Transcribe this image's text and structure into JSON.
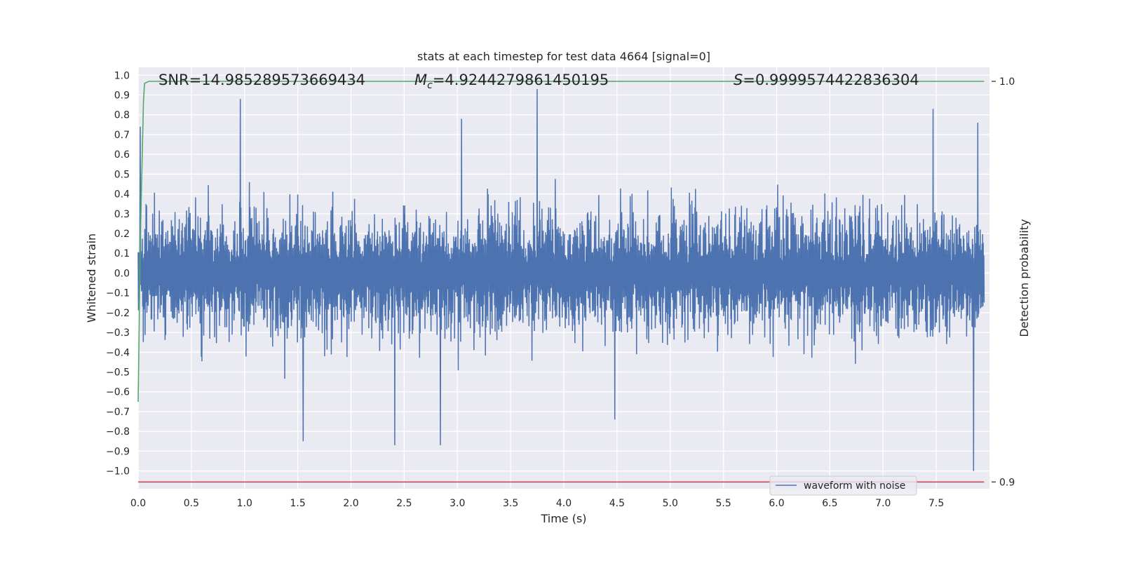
{
  "chart_data": {
    "type": "line",
    "title": "stats at each timestep for test data 4664 [signal=0]",
    "xlabel": "Time (s)",
    "ylabel": "Whitened strain",
    "y2label": "Detection probability",
    "xlim": [
      0.0,
      8.0
    ],
    "ylim": [
      -1.09,
      1.04
    ],
    "y2lim": [
      0.8983,
      1.0035
    ],
    "xticks": [
      "0.0",
      "0.5",
      "1.0",
      "1.5",
      "2.0",
      "2.5",
      "3.0",
      "3.5",
      "4.0",
      "4.5",
      "5.0",
      "5.5",
      "6.0",
      "6.5",
      "7.0",
      "7.5"
    ],
    "yticks": [
      "1.0",
      "0.9",
      "0.8",
      "0.7",
      "0.6",
      "0.5",
      "0.4",
      "0.3",
      "0.2",
      "0.1",
      "0.0",
      "−0.1",
      "−0.2",
      "−0.3",
      "−0.4",
      "−0.5",
      "−0.6",
      "−0.7",
      "−0.8",
      "−0.9",
      "−1.0"
    ],
    "y2ticks": [
      "1.0",
      "0.9"
    ],
    "grid": true,
    "legend_position": "lower-center",
    "annotations": {
      "snr": "SNR=14.985289573669434",
      "mc_symbol": "M",
      "mc_sub": "c",
      "mc_value": "=4.9244279861450195",
      "s_symbol": "S",
      "s_value": "=0.9999574422836304"
    },
    "series": [
      {
        "name": "waveform with noise",
        "axis": "left",
        "color": "#4c72b0",
        "x_range": [
          0.0,
          8.0
        ],
        "amplitude_range": [
          -1.0,
          0.93
        ],
        "peaks": [
          {
            "x": 0.02,
            "y": 0.74
          },
          {
            "x": 0.96,
            "y": 0.88
          },
          {
            "x": 3.04,
            "y": 0.78
          },
          {
            "x": 3.75,
            "y": 0.93
          },
          {
            "x": 7.47,
            "y": 0.83
          },
          {
            "x": 7.89,
            "y": 0.76
          },
          {
            "x": 1.55,
            "y": -0.85
          },
          {
            "x": 2.41,
            "y": -0.87
          },
          {
            "x": 2.84,
            "y": -0.87
          },
          {
            "x": 4.48,
            "y": -0.74
          },
          {
            "x": 7.85,
            "y": -1.0
          }
        ]
      },
      {
        "name": "",
        "axis": "right",
        "color": "#55a868",
        "x": [
          0.0,
          0.02,
          0.05,
          0.06,
          0.1,
          7.95
        ],
        "y": [
          0.92,
          0.96,
          0.995,
          0.9995,
          1.0,
          1.0
        ]
      },
      {
        "name": "",
        "axis": "right",
        "color": "#c44e52",
        "x": [
          0.0,
          7.95
        ],
        "y": [
          0.9,
          0.9
        ]
      }
    ]
  }
}
